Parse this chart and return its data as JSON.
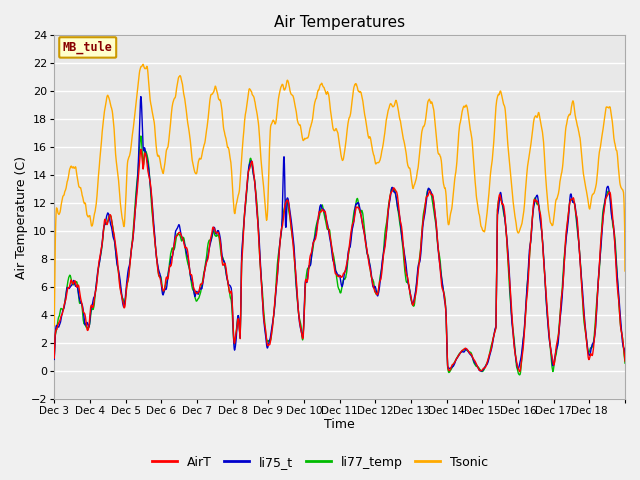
{
  "title": "Air Temperatures",
  "xlabel": "Time",
  "ylabel": "Air Temperature (C)",
  "ylim": [
    -2,
    24
  ],
  "n_days": 16,
  "fig_facecolor": "#f0f0f0",
  "plot_facecolor": "#e8e8e8",
  "grid_color": "#ffffff",
  "legend_label": "MB_tule",
  "legend_box_facecolor": "#ffffcc",
  "legend_box_edgecolor": "#cc9900",
  "legend_label_color": "#880000",
  "series_colors": {
    "AirT": "#ff0000",
    "li75_t": "#0000cc",
    "li77_temp": "#00bb00",
    "Tsonic": "#ffaa00"
  },
  "xtick_labels": [
    "Dec 3",
    "Dec 4",
    "Dec 5",
    "Dec 6",
    "Dec 7",
    "Dec 8",
    "Dec 9",
    "Dec 10",
    "Dec 11",
    "Dec 12",
    "Dec 13",
    "Dec 14",
    "Dec 15",
    "Dec 16",
    "Dec 17",
    "Dec 18"
  ],
  "ytick_values": [
    -2,
    0,
    2,
    4,
    6,
    8,
    10,
    12,
    14,
    16,
    18,
    20,
    22,
    24
  ],
  "line_width": 1.0,
  "title_fontsize": 11,
  "axis_label_fontsize": 9,
  "tick_fontsize": 8
}
